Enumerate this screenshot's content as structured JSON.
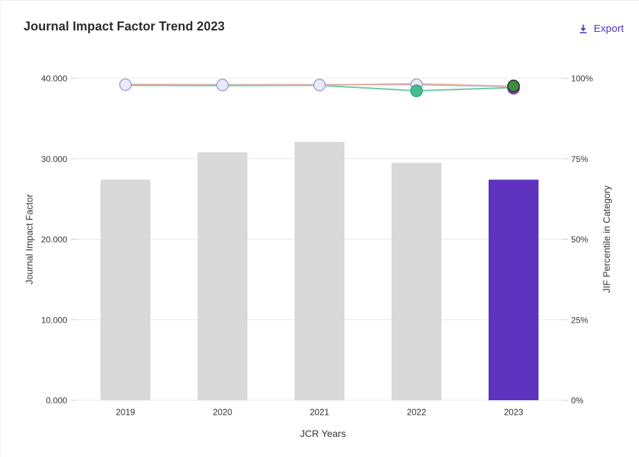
{
  "header": {
    "title": "Journal Impact Factor Trend 2023",
    "export_label": "Export",
    "accent_color": "#5436c0"
  },
  "chart_data": {
    "type": "bar",
    "subtype": "combo-bar-line-dual-axis",
    "title": "Journal Impact Factor Trend 2023",
    "categories": [
      "2019",
      "2020",
      "2021",
      "2022",
      "2023"
    ],
    "xlabel": "JCR Years",
    "left_axis": {
      "label": "Journal Impact Factor",
      "tick_labels": [
        "40.000",
        "30.000",
        "20.000",
        "10.000",
        "0.000"
      ],
      "tick_values": [
        40,
        30,
        20,
        10,
        0
      ],
      "range": [
        0,
        40
      ],
      "grid": true
    },
    "right_axis": {
      "label": "JIF Percentile in Category",
      "tick_labels": [
        "100%",
        "75%",
        "50%",
        "25%",
        "0%"
      ],
      "tick_values": [
        100,
        75,
        50,
        25,
        0
      ],
      "range": [
        0,
        100
      ]
    },
    "bars": {
      "name": "journal-impact-factor",
      "values": [
        27.4,
        30.8,
        32.1,
        29.5,
        27.4
      ],
      "colors": [
        "#d9d9d9",
        "#d9d9d9",
        "#d9d9d9",
        "#d9d9d9",
        "#5e33bf"
      ],
      "highlight_year": "2023",
      "highlight_color": "#5e33bf",
      "default_color": "#d9d9d9"
    },
    "series": [
      {
        "name": "percentile-line-1",
        "color": "#a6aed9",
        "values": [
          98.1,
          98.0,
          98.0,
          98.0,
          97.4
        ]
      },
      {
        "name": "percentile-line-2",
        "color": "#5ec4a2",
        "values": [
          97.8,
          97.7,
          97.8,
          96.1,
          97.1
        ]
      },
      {
        "name": "percentile-line-3",
        "color": "#e6b298",
        "values": [
          98.0,
          97.9,
          97.9,
          98.3,
          97.5
        ]
      }
    ],
    "point_markers": [
      {
        "year_index": 0,
        "value": 98.0,
        "fill": "#e9e9f7",
        "stroke": "#a5a5d2",
        "name": "marker-2019-open"
      },
      {
        "year_index": 1,
        "value": 97.9,
        "fill": "#e9e9f7",
        "stroke": "#a5a5d2",
        "name": "marker-2020-open"
      },
      {
        "year_index": 2,
        "value": 97.9,
        "fill": "#e9e9f7",
        "stroke": "#a5a5d2",
        "name": "marker-2021-open"
      },
      {
        "year_index": 3,
        "value": 98.0,
        "fill": "#e9e9f7",
        "stroke": "#a5a5d2",
        "name": "marker-2022-open"
      },
      {
        "year_index": 3,
        "value": 96.1,
        "fill": "#45bd92",
        "stroke": "#35a37c",
        "name": "marker-2022-teal"
      },
      {
        "year_index": 4,
        "value": 97.4,
        "fill": "#e0995c",
        "stroke": "#c9884f",
        "name": "marker-2023-orange"
      },
      {
        "year_index": 4,
        "value": 96.9,
        "fill": "#8a4fae",
        "stroke": "#7a3f9e",
        "name": "marker-2023-purple"
      },
      {
        "year_index": 4,
        "value": 97.6,
        "fill": "#3e8e41",
        "stroke": "#2f2f2f",
        "name": "marker-2023-green"
      }
    ],
    "grid_color": "#e7e7e7",
    "tick_color": "#cfcfcf",
    "text_color": "#333333"
  }
}
